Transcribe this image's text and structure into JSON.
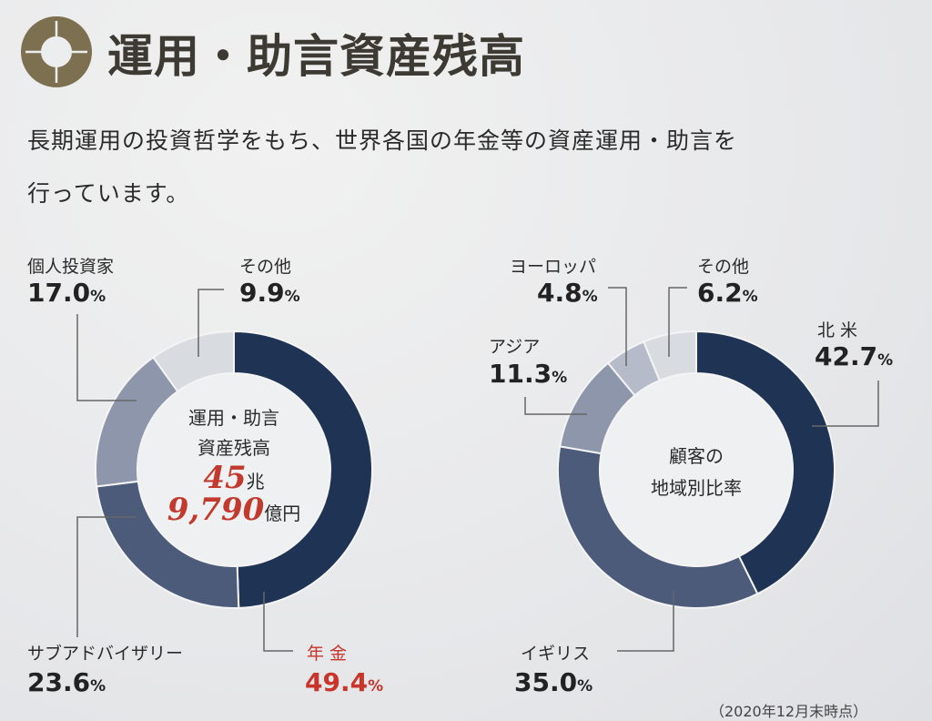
{
  "header": {
    "title": "運用・助言資産残高",
    "description_line1": "長期運用の投資哲学をもち、世界各国の年金等の資産運用・助言を",
    "description_line2": "行っています。"
  },
  "chart_data": [
    {
      "type": "pie",
      "title": "運用・助言資産残高",
      "center_label_line1": "運用・助言",
      "center_label_line2": "資産残高",
      "center_value_cho": "45",
      "center_unit_cho": "兆",
      "center_value_oku": "9,790",
      "center_unit_oku": "億円",
      "slices": [
        {
          "label": "年 金",
          "value": 49.4,
          "display": "49.4",
          "color": "#1f3455",
          "highlight": "#c8352b"
        },
        {
          "label": "サブアドバイザリー",
          "value": 23.6,
          "display": "23.6",
          "color": "#4b5b79"
        },
        {
          "label": "個人投資家",
          "value": 17.0,
          "display": "17.0",
          "color": "#8d96aa"
        },
        {
          "label": "その他",
          "value": 9.9,
          "display": "9.9",
          "color": "#d8dbe0"
        }
      ]
    },
    {
      "type": "pie",
      "title": "顧客の地域別比率",
      "center_label_line1": "顧客の",
      "center_label_line2": "地域別比率",
      "slices": [
        {
          "label": "北 米",
          "value": 42.7,
          "display": "42.7",
          "color": "#1f3455"
        },
        {
          "label": "イギリス",
          "value": 35.0,
          "display": "35.0",
          "color": "#4b5b79"
        },
        {
          "label": "アジア",
          "value": 11.3,
          "display": "11.3",
          "color": "#8d96aa"
        },
        {
          "label": "ヨーロッパ",
          "value": 4.8,
          "display": "4.8",
          "color": "#b5bbc8"
        },
        {
          "label": "その他",
          "value": 6.2,
          "display": "6.2",
          "color": "#d8dbe0"
        }
      ]
    }
  ],
  "pct_unit": "%",
  "footnote": "（2020年12月末時点）"
}
